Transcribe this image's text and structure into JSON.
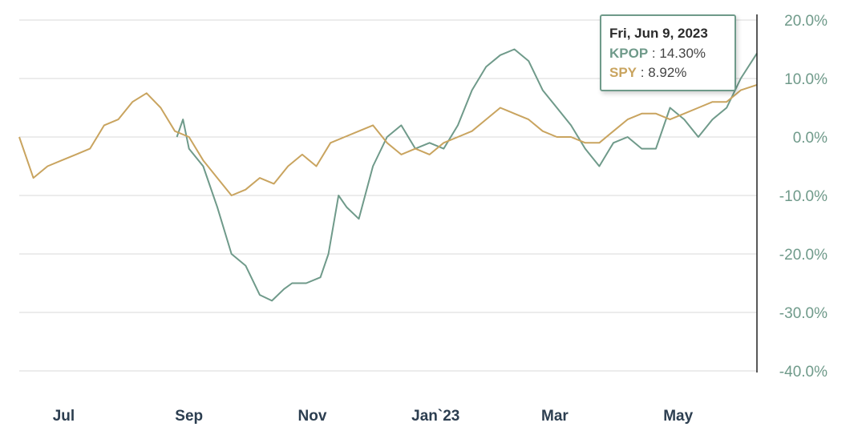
{
  "chart_data": {
    "type": "line",
    "y_axis_position": "right",
    "y_ticks": [
      "20.0%",
      "10.0%",
      "0.0%",
      "-10.0%",
      "-20.0%",
      "-30.0%",
      "-40.0%"
    ],
    "ylim": [
      -40,
      20
    ],
    "x_ticks": [
      "Jul",
      "Sep",
      "Nov",
      "Jan`23",
      "Mar",
      "May"
    ],
    "x_range": [
      "2022-06-09",
      "2023-06-09"
    ],
    "x_tick_dates": [
      "2022-07-01",
      "2022-09-01",
      "2022-11-01",
      "2023-01-01",
      "2023-03-01",
      "2023-05-01"
    ],
    "grid": true,
    "series": [
      {
        "name": "KPOP",
        "color": "#6f9a8a",
        "x": [
          "2022-08-26",
          "2022-08-29",
          "2022-09-01",
          "2022-09-08",
          "2022-09-15",
          "2022-09-22",
          "2022-09-29",
          "2022-10-06",
          "2022-10-12",
          "2022-10-18",
          "2022-10-22",
          "2022-10-29",
          "2022-11-05",
          "2022-11-09",
          "2022-11-14",
          "2022-11-18",
          "2022-11-24",
          "2022-12-01",
          "2022-12-08",
          "2022-12-15",
          "2022-12-22",
          "2022-12-29",
          "2023-01-05",
          "2023-01-12",
          "2023-01-19",
          "2023-01-26",
          "2023-02-02",
          "2023-02-09",
          "2023-02-16",
          "2023-02-23",
          "2023-03-02",
          "2023-03-09",
          "2023-03-16",
          "2023-03-23",
          "2023-03-30",
          "2023-04-06",
          "2023-04-13",
          "2023-04-20",
          "2023-04-27",
          "2023-05-04",
          "2023-05-11",
          "2023-05-18",
          "2023-05-25",
          "2023-06-01",
          "2023-06-09"
        ],
        "y": [
          0,
          3,
          -2,
          -5,
          -12,
          -20,
          -22,
          -27,
          -28,
          -26,
          -25,
          -25,
          -24,
          -20,
          -10,
          -12,
          -14,
          -5,
          0,
          2,
          -2,
          -1,
          -2,
          2,
          8,
          12,
          14,
          15,
          13,
          8,
          5,
          2,
          -2,
          -5,
          -1,
          0,
          -2,
          -2,
          5,
          3,
          0,
          3,
          5,
          10,
          14.3
        ]
      },
      {
        "name": "SPY",
        "color": "#c9a45f",
        "x": [
          "2022-06-09",
          "2022-06-16",
          "2022-06-23",
          "2022-06-30",
          "2022-07-07",
          "2022-07-14",
          "2022-07-21",
          "2022-07-28",
          "2022-08-04",
          "2022-08-11",
          "2022-08-18",
          "2022-08-25",
          "2022-09-01",
          "2022-09-08",
          "2022-09-15",
          "2022-09-22",
          "2022-09-29",
          "2022-10-06",
          "2022-10-13",
          "2022-10-20",
          "2022-10-27",
          "2022-11-03",
          "2022-11-10",
          "2022-11-17",
          "2022-11-24",
          "2022-12-01",
          "2022-12-08",
          "2022-12-15",
          "2022-12-22",
          "2022-12-29",
          "2023-01-05",
          "2023-01-12",
          "2023-01-19",
          "2023-01-26",
          "2023-02-02",
          "2023-02-09",
          "2023-02-16",
          "2023-02-23",
          "2023-03-02",
          "2023-03-09",
          "2023-03-16",
          "2023-03-23",
          "2023-03-30",
          "2023-04-06",
          "2023-04-13",
          "2023-04-20",
          "2023-04-27",
          "2023-05-04",
          "2023-05-11",
          "2023-05-18",
          "2023-05-25",
          "2023-06-01",
          "2023-06-09"
        ],
        "y": [
          0,
          -7,
          -5,
          -4,
          -3,
          -2,
          2,
          3,
          6,
          7.5,
          5,
          1,
          0,
          -4,
          -7,
          -10,
          -9,
          -7,
          -8,
          -5,
          -3,
          -5,
          -1,
          0,
          1,
          2,
          -1,
          -3,
          -2,
          -3,
          -1,
          0,
          1,
          3,
          5,
          4,
          3,
          1,
          0,
          0,
          -1,
          -1,
          1,
          3,
          4,
          4,
          3,
          4,
          5,
          6,
          6,
          8,
          8.92
        ]
      }
    ]
  },
  "tooltip": {
    "date": "Fri, Jun 9, 2023",
    "rows": [
      {
        "name": "KPOP",
        "sep": " : ",
        "value": "14.30%",
        "color": "#6f9a8a"
      },
      {
        "name": "SPY",
        "sep": " : ",
        "value": "8.92%",
        "color": "#c9a45f"
      }
    ]
  }
}
